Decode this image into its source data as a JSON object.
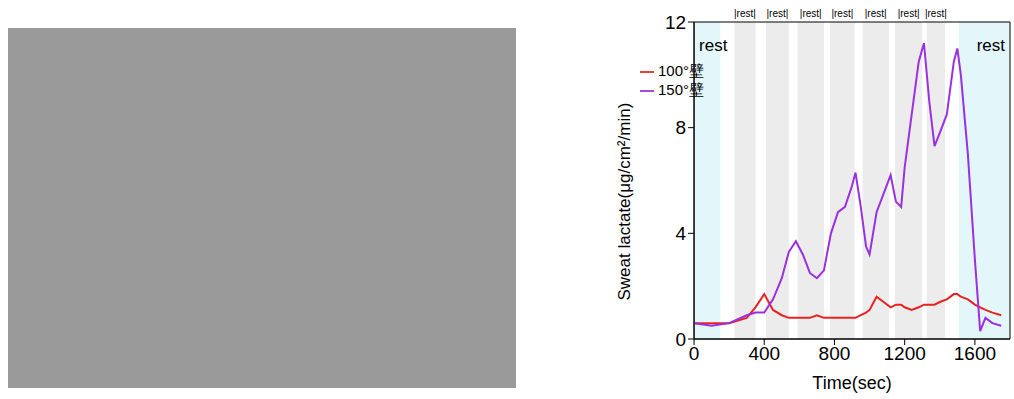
{
  "chart_data": {
    "type": "line",
    "x_label": "Time(sec)",
    "y_label": "Sweat lactate(μg/cm²/min)",
    "xlim": [
      0,
      1800
    ],
    "xticks": [
      0,
      400,
      800,
      1200,
      1600
    ],
    "ylim": [
      0,
      12
    ],
    "yticks": [
      0,
      4,
      8,
      12
    ],
    "legend": "upper left",
    "grid": false,
    "x": [
      0,
      100,
      200,
      300,
      350,
      400,
      450,
      500,
      540,
      580,
      620,
      660,
      700,
      740,
      780,
      820,
      860,
      900,
      920,
      950,
      980,
      1000,
      1040,
      1080,
      1120,
      1150,
      1180,
      1200,
      1240,
      1280,
      1310,
      1340,
      1370,
      1400,
      1440,
      1480,
      1500,
      1520,
      1560,
      1600,
      1630,
      1660,
      1700,
      1750
    ],
    "series": [
      {
        "name": "100°壁",
        "color": "#e8231f",
        "values": [
          0.6,
          0.6,
          0.6,
          0.8,
          1.2,
          1.7,
          1.1,
          0.9,
          0.8,
          0.8,
          0.8,
          0.8,
          0.9,
          0.8,
          0.8,
          0.8,
          0.8,
          0.8,
          0.8,
          0.9,
          1.0,
          1.1,
          1.6,
          1.4,
          1.2,
          1.3,
          1.3,
          1.2,
          1.1,
          1.2,
          1.3,
          1.3,
          1.3,
          1.4,
          1.5,
          1.7,
          1.7,
          1.6,
          1.5,
          1.3,
          1.2,
          1.1,
          1.0,
          0.9
        ]
      },
      {
        "name": "150°壁",
        "color": "#9b30e0",
        "values": [
          0.6,
          0.5,
          0.6,
          0.9,
          1.0,
          1.0,
          1.5,
          2.3,
          3.3,
          3.7,
          3.2,
          2.5,
          2.3,
          2.6,
          4.0,
          4.8,
          5.0,
          5.8,
          6.3,
          5.0,
          3.5,
          3.2,
          4.8,
          5.5,
          6.2,
          5.2,
          5.0,
          6.5,
          8.5,
          10.5,
          11.2,
          9.0,
          7.3,
          7.8,
          8.5,
          10.5,
          11.0,
          10.0,
          7.0,
          3.0,
          0.3,
          0.8,
          0.6,
          0.5
        ]
      }
    ],
    "annotations": [
      {
        "text": "rest",
        "x1": 0,
        "x2": 150,
        "color": "#e3f6fa"
      },
      {
        "text": "rest",
        "x1": 1510,
        "x2": 1800,
        "color": "#e3f6fa"
      }
    ],
    "rest_periods": [
      {
        "text": "|rest|",
        "x1": 230,
        "x2": 350,
        "color": "#ececec"
      },
      {
        "text": "|rest|",
        "x1": 410,
        "x2": 540,
        "color": "#ececec"
      },
      {
        "text": "|rest|",
        "x1": 590,
        "x2": 740,
        "color": "#ececec"
      },
      {
        "text": "|rest|",
        "x1": 775,
        "x2": 915,
        "color": "#ececec"
      },
      {
        "text": "|rest|",
        "x1": 960,
        "x2": 1110,
        "color": "#ececec"
      },
      {
        "text": "|rest|",
        "x1": 1145,
        "x2": 1300,
        "color": "#ececec"
      },
      {
        "text": "|rest|",
        "x1": 1325,
        "x2": 1430,
        "color": "#ececec"
      }
    ]
  }
}
